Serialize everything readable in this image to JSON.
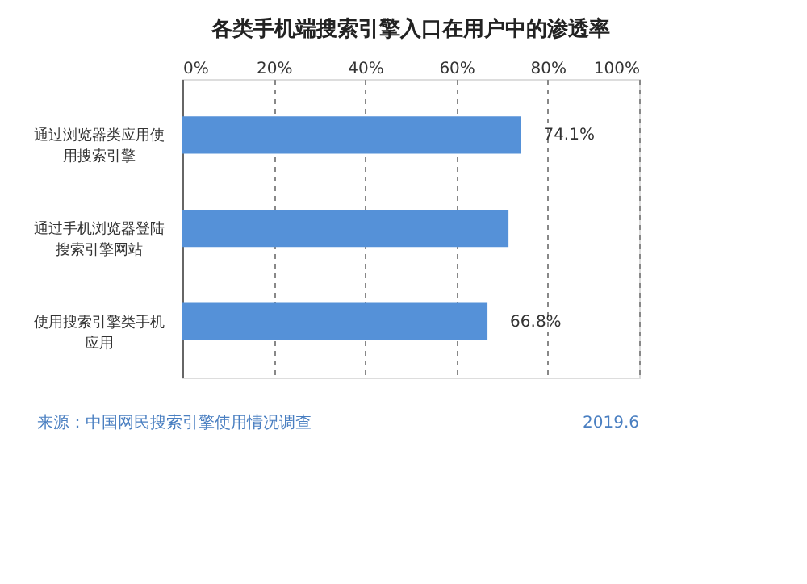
{
  "chart_data": {
    "type": "bar",
    "orientation": "horizontal",
    "title": "各类手机端搜索引擎入口在用户中的渗透率",
    "categories": [
      "通过浏览器类应用使用搜索引擎",
      "通过手机浏览器登陆搜索引擎网站",
      "使用搜索引擎类手机应用"
    ],
    "values": [
      74.1,
      71.4,
      66.8
    ],
    "value_labels": [
      "74.1%",
      null,
      "66.8%"
    ],
    "color": "#5591d8",
    "xlim": [
      0,
      100
    ],
    "xticks": [
      {
        "value": 0,
        "label": "0%"
      },
      {
        "value": 20,
        "label": "20%"
      },
      {
        "value": 40,
        "label": "40%"
      },
      {
        "value": 60,
        "label": "60%"
      },
      {
        "value": 80,
        "label": "80%"
      },
      {
        "value": 100,
        "label": "100%"
      }
    ],
    "grid": "x",
    "annotations": [
      "来源：中国网民搜索引擎使用情况调查",
      "2019.6"
    ]
  }
}
